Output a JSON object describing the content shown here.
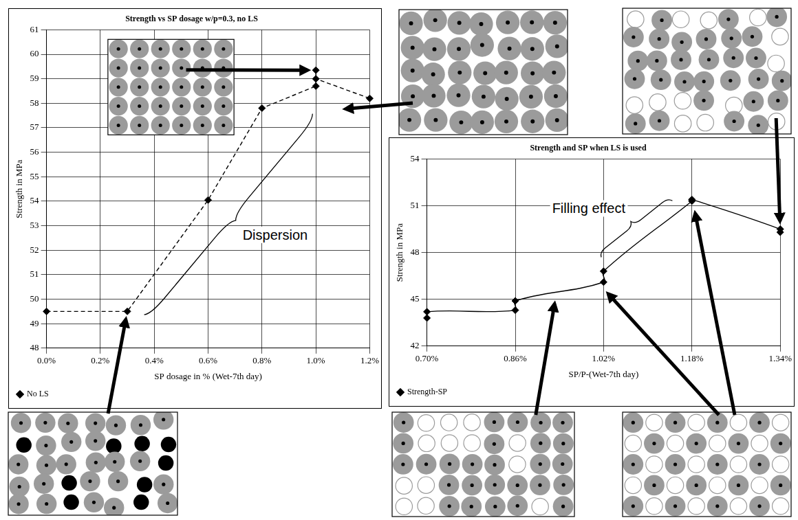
{
  "chart_data": [
    {
      "type": "line",
      "title": "Strength vs SP dosage w/p=0.3, no LS",
      "x_label": "SP dosage in % (Wet-7th day)",
      "y_label": "Strength in MPa",
      "x": [
        0,
        0.3,
        0.6,
        0.8,
        1.0,
        1.0,
        1.0,
        1.2
      ],
      "series": [
        {
          "name": "No LS",
          "color": "#000000",
          "marker": "diamond",
          "line_style": "dashed",
          "values": [
            49.5,
            49.5,
            54.05,
            57.8,
            58.7,
            59.35,
            59.0,
            58.2
          ]
        }
      ],
      "xlim": [
        0,
        1.2
      ],
      "xticks": [
        {
          "value": 0,
          "label": "0.0%"
        },
        {
          "value": 0.2,
          "label": "0.2%"
        },
        {
          "value": 0.4,
          "label": "0.4%"
        },
        {
          "value": 0.6,
          "label": "0.6%"
        },
        {
          "value": 0.8,
          "label": "0.8%"
        },
        {
          "value": 1.0,
          "label": "1.0%"
        },
        {
          "value": 1.2,
          "label": "1.2%"
        }
      ],
      "ylim": [
        48,
        61
      ],
      "yticks": [
        48,
        49,
        50,
        51,
        52,
        53,
        54,
        55,
        56,
        57,
        58,
        59,
        60,
        61
      ],
      "grid": true,
      "legend": "bottom-left",
      "annotations": [
        "Dispersion"
      ]
    },
    {
      "type": "line",
      "title": "Strength and SP when LS is used",
      "x_label": "SP/P-(Wet-7th day)",
      "y_label": "Strength in MPa",
      "x": [
        0.7,
        0.7,
        0.86,
        0.86,
        1.02,
        1.02,
        1.18,
        1.18,
        1.34,
        1.34
      ],
      "series": [
        {
          "name": "Strength-SP",
          "color": "#000000",
          "marker": "diamond",
          "line_style": "smooth",
          "values": [
            43.8,
            44.2,
            44.3,
            44.9,
            46.1,
            46.8,
            51.3,
            51.4,
            49.5,
            49.3
          ]
        }
      ],
      "xlim": [
        0.7,
        1.34
      ],
      "xticks": [
        {
          "value": 0.7,
          "label": "0.70%"
        },
        {
          "value": 0.86,
          "label": "0.86%"
        },
        {
          "value": 1.02,
          "label": "1.02%"
        },
        {
          "value": 1.18,
          "label": "1.18%"
        },
        {
          "value": 1.34,
          "label": "1.34%"
        }
      ],
      "ylim": [
        42,
        54
      ],
      "yticks": [
        42,
        45,
        48,
        51,
        54
      ],
      "grid": true,
      "legend": "bottom-left",
      "annotations": [
        "Filling effect"
      ]
    }
  ]
}
